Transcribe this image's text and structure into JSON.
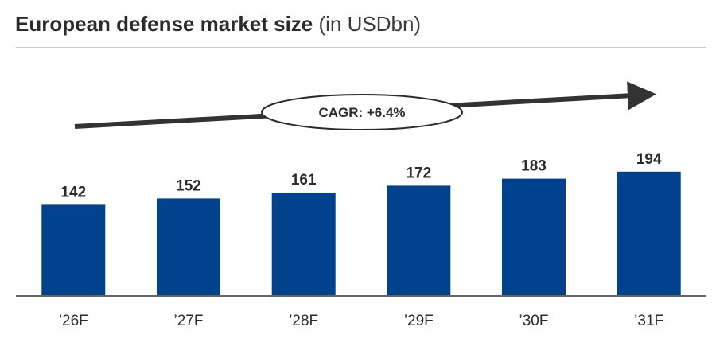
{
  "title": {
    "main": "European defense market size",
    "unit": "(in USDbn)"
  },
  "annotation": {
    "text": "CAGR: +6.4%"
  },
  "colors": {
    "bar": "#00428C",
    "arrow": "#333333",
    "axis": "#333333"
  },
  "chart_data": {
    "type": "bar",
    "categories": [
      "’26F",
      "’27F",
      "’28F",
      "’29F",
      "’30F",
      "’31F"
    ],
    "values": [
      142,
      152,
      161,
      172,
      183,
      194
    ],
    "title": "European defense market size (in USDbn)",
    "xlabel": "",
    "ylabel": "",
    "ylim": [
      0,
      200
    ],
    "grid": false,
    "legend": "none",
    "annotations": [
      "CAGR: +6.4%"
    ]
  }
}
